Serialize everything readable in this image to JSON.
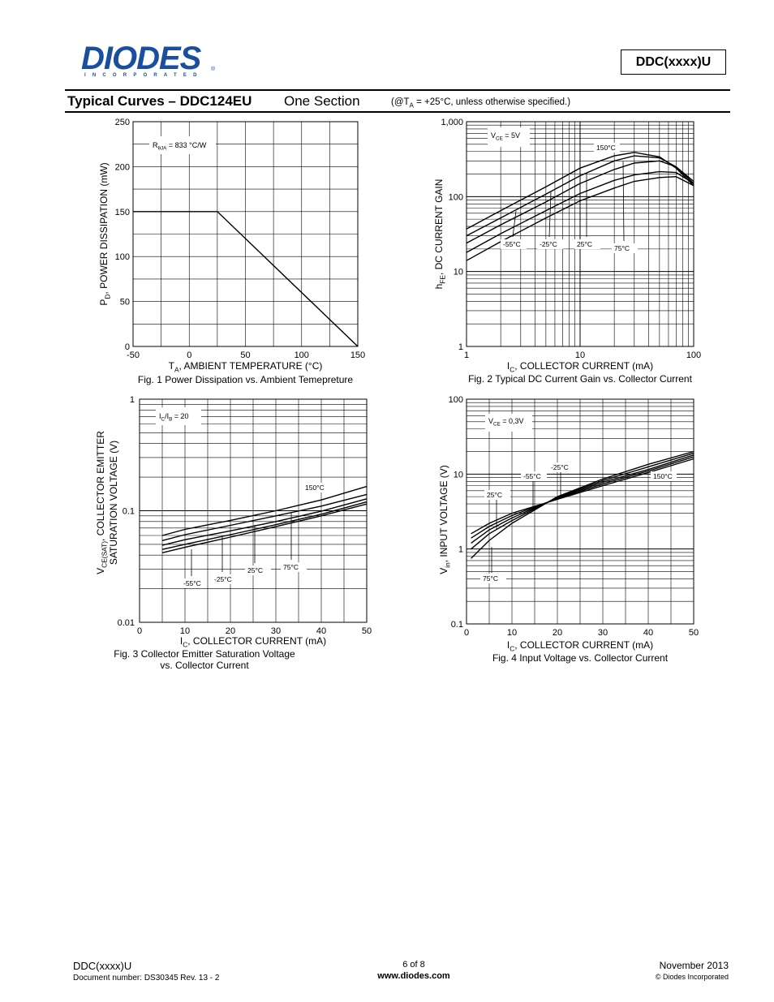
{
  "header": {
    "logo_text": "DIODES",
    "logo_sub": "INCORPORATED",
    "logo_reg": "®",
    "part": "DDC(xxxx)U",
    "title": "Typical Curves – DDC124EU",
    "subtitle": "One Section",
    "cond_prefix": "(@T",
    "cond_sub": "A",
    "cond_suffix": " = +25°C, unless otherwise specified.)"
  },
  "footer": {
    "part": "DDC(xxxx)U",
    "docnum": "Document number: DS30345 Rev. 13 - 2",
    "page": "6 of 8",
    "url": "www.diodes.com",
    "date": "November 2013",
    "copyright": "© Diodes Incorporated"
  },
  "chart_data": [
    {
      "type": "line",
      "caption": "Fig. 1  Power Dissipation vs. Ambient Temepreture",
      "xlabel": {
        "main": "T",
        "sub": "A",
        "rest": ", AMBIENT TEMPERATURE (°C)"
      },
      "ylabel": {
        "main": "P",
        "sub": "D",
        "rest": ", POWER DISSIPATION (mW)"
      },
      "xlim": [
        -50,
        150
      ],
      "ylim": [
        0,
        250
      ],
      "xticks": [
        -50,
        0,
        50,
        100,
        150
      ],
      "yticks": [
        0,
        50,
        100,
        150,
        200,
        250
      ],
      "annotation": {
        "main": "R",
        "sub": "θJA",
        "rest": " = 833 °C/W"
      },
      "series": [
        {
          "x": [
            -50,
            25,
            150
          ],
          "y": [
            150,
            150,
            0
          ]
        }
      ]
    },
    {
      "type": "line",
      "caption": "Fig. 2  Typical DC Current Gain vs. Collector Current",
      "xlabel": {
        "main": "I",
        "sub": "C",
        "rest": ", COLLECTOR CURRENT (mA)"
      },
      "ylabel": {
        "main": "h",
        "sub": "FE",
        "rest": ", DC CURRENT GAIN"
      },
      "xscale": "log",
      "yscale": "log",
      "xlim": [
        1,
        100
      ],
      "ylim": [
        1,
        1000
      ],
      "xtick_labels": [
        "1",
        "10",
        "100"
      ],
      "ytick_labels": [
        "1",
        "10",
        "100",
        "1,000"
      ],
      "annotation": {
        "main": "V",
        "sub": "CE",
        "rest": " = 5V"
      },
      "temperature_labels": [
        "150°C",
        "-55°C",
        "-25°C",
        "25°C",
        "75°C"
      ],
      "series": [
        {
          "x": [
            1,
            2,
            5,
            10,
            20,
            30,
            50,
            70,
            100
          ],
          "y": [
            24,
            42,
            85,
            150,
            230,
            280,
            300,
            250,
            160
          ]
        },
        {
          "x": [
            1,
            2,
            5,
            10,
            20,
            30,
            50,
            70,
            100
          ],
          "y": [
            30,
            52,
            108,
            190,
            300,
            350,
            330,
            250,
            150
          ]
        },
        {
          "x": [
            1,
            2,
            5,
            10,
            20,
            30,
            50,
            70,
            100
          ],
          "y": [
            37,
            65,
            135,
            240,
            350,
            390,
            340,
            240,
            140
          ]
        },
        {
          "x": [
            1,
            2,
            5,
            10,
            20,
            30,
            50,
            70,
            100
          ],
          "y": [
            18,
            32,
            65,
            110,
            165,
            195,
            215,
            210,
            150
          ]
        },
        {
          "x": [
            1,
            2,
            5,
            10,
            20,
            30,
            50,
            70,
            100
          ],
          "y": [
            14,
            25,
            52,
            88,
            130,
            160,
            180,
            185,
            140
          ]
        }
      ]
    },
    {
      "type": "line",
      "caption_lines": [
        "Fig. 3 Collector Emitter Saturation Voltage",
        "vs. Collector Current"
      ],
      "xlabel": {
        "main": "I",
        "sub": "C",
        "rest": ", COLLECTOR CURRENT (mA)"
      },
      "ylabel": {
        "main": "V",
        "sub": "CE(SAT)",
        "rest": ", COLLECTOR EMITTER",
        "line2": "SATURATION VOLTAGE (V)"
      },
      "yscale": "log",
      "xlim": [
        0,
        50
      ],
      "ylim": [
        0.01,
        1
      ],
      "xticks": [
        0,
        10,
        20,
        30,
        40,
        50
      ],
      "ytick_labels": [
        "0.01",
        "0.1",
        "1"
      ],
      "annotation": {
        "main": "I",
        "sub": "C",
        "rest": "/I",
        "sub2": "B",
        "rest2": " = 20"
      },
      "temperature_labels": [
        "150°C",
        "-55°C",
        "-25°C",
        "25°C",
        "75°C"
      ],
      "series": [
        {
          "x": [
            5,
            10,
            20,
            30,
            40,
            50
          ],
          "y": [
            0.06,
            0.068,
            0.082,
            0.1,
            0.125,
            0.165
          ]
        },
        {
          "x": [
            5,
            10,
            20,
            30,
            40,
            50
          ],
          "y": [
            0.054,
            0.061,
            0.074,
            0.09,
            0.11,
            0.14
          ]
        },
        {
          "x": [
            5,
            10,
            20,
            30,
            40,
            50
          ],
          "y": [
            0.049,
            0.055,
            0.066,
            0.08,
            0.099,
            0.128
          ]
        },
        {
          "x": [
            5,
            10,
            20,
            30,
            40,
            50
          ],
          "y": [
            0.045,
            0.05,
            0.061,
            0.075,
            0.093,
            0.12
          ]
        },
        {
          "x": [
            5,
            10,
            20,
            30,
            40,
            50
          ],
          "y": [
            0.042,
            0.047,
            0.058,
            0.072,
            0.09,
            0.115
          ]
        }
      ]
    },
    {
      "type": "line",
      "caption": "Fig. 4  Input Voltage vs. Collector Current",
      "xlabel": {
        "main": "I",
        "sub": "C",
        "rest": ", COLLECTOR CURRENT (mA)"
      },
      "ylabel": {
        "main": "V",
        "sub": "in",
        "rest": ", INPUT VOLTAGE (V)"
      },
      "yscale": "log",
      "xlim": [
        0,
        50
      ],
      "ylim": [
        0.1,
        100
      ],
      "xticks": [
        0,
        10,
        20,
        30,
        40,
        50
      ],
      "ytick_labels": [
        "0.1",
        "1",
        "10",
        "100"
      ],
      "annotation": {
        "main": "V",
        "sub": "CE",
        "rest": " = 0,3V"
      },
      "temperature_labels": [
        "-25°C",
        "-55°C",
        "150°C",
        "25°C",
        "75°C"
      ],
      "series": [
        {
          "x": [
            1,
            5,
            10,
            20,
            30,
            40,
            50
          ],
          "y": [
            1.6,
            2.2,
            3.0,
            4.6,
            7.0,
            10.5,
            16
          ]
        },
        {
          "x": [
            1,
            5,
            10,
            20,
            30,
            40,
            50
          ],
          "y": [
            1.4,
            2.0,
            2.8,
            4.7,
            7.4,
            11,
            17
          ]
        },
        {
          "x": [
            1,
            5,
            10,
            20,
            30,
            40,
            50
          ],
          "y": [
            1.2,
            1.8,
            2.6,
            4.8,
            7.8,
            11.5,
            18
          ]
        },
        {
          "x": [
            1,
            5,
            10,
            20,
            30,
            40,
            50
          ],
          "y": [
            1.0,
            1.6,
            2.4,
            4.9,
            8.2,
            12.5,
            19
          ]
        },
        {
          "x": [
            1,
            5,
            10,
            20,
            30,
            40,
            50
          ],
          "y": [
            0.75,
            1.3,
            2.2,
            5.0,
            8.6,
            13.5,
            20
          ]
        }
      ]
    }
  ]
}
